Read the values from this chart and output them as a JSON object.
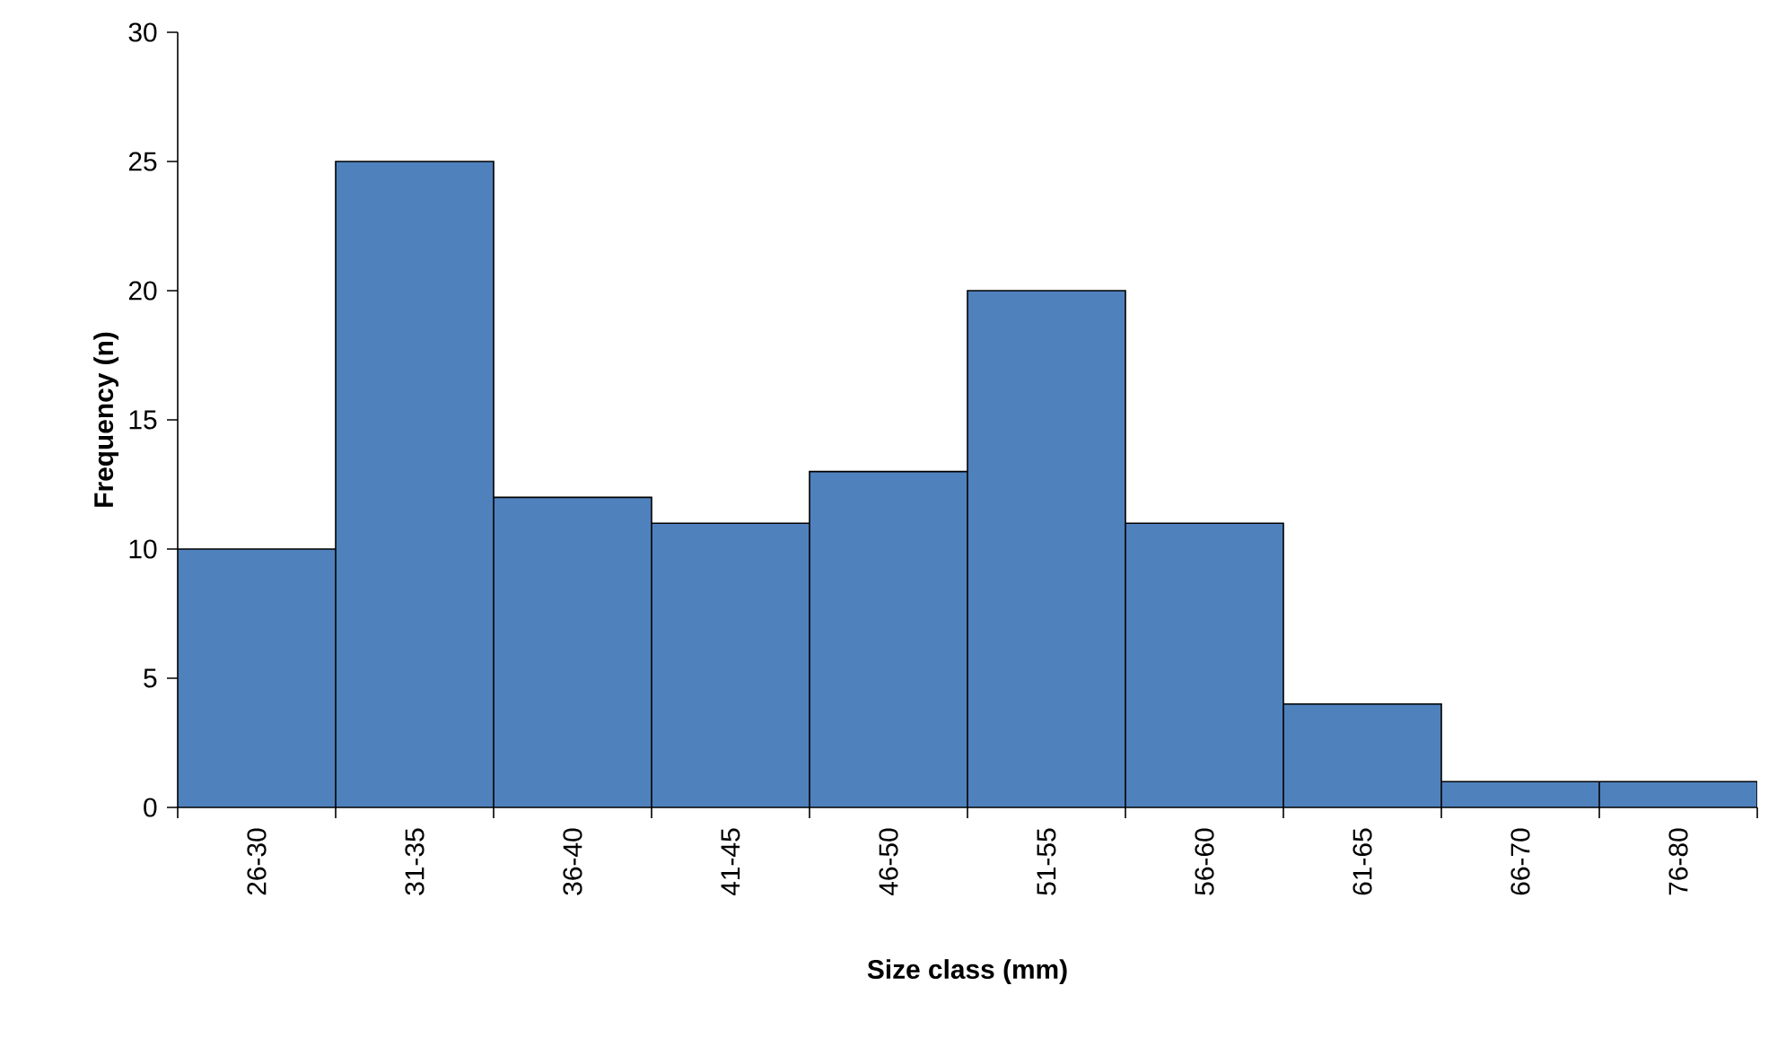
{
  "chart_data": {
    "type": "bar",
    "xlabel": "**Size class (mm)**",
    "ylabel": "**Frequency (n)**",
    "categories": [
      "26-30",
      "31-35",
      "36-40",
      "41-45",
      "46-50",
      "51-55",
      "56-60",
      "61-65",
      "66-70",
      "76-80"
    ],
    "values": [
      10,
      25,
      12,
      11,
      13,
      20,
      11,
      4,
      1,
      1
    ],
    "color": "#4f81bd",
    "ylim": [
      0,
      30
    ],
    "yticks": [
      0,
      5,
      10,
      15,
      20,
      25,
      30
    ]
  }
}
